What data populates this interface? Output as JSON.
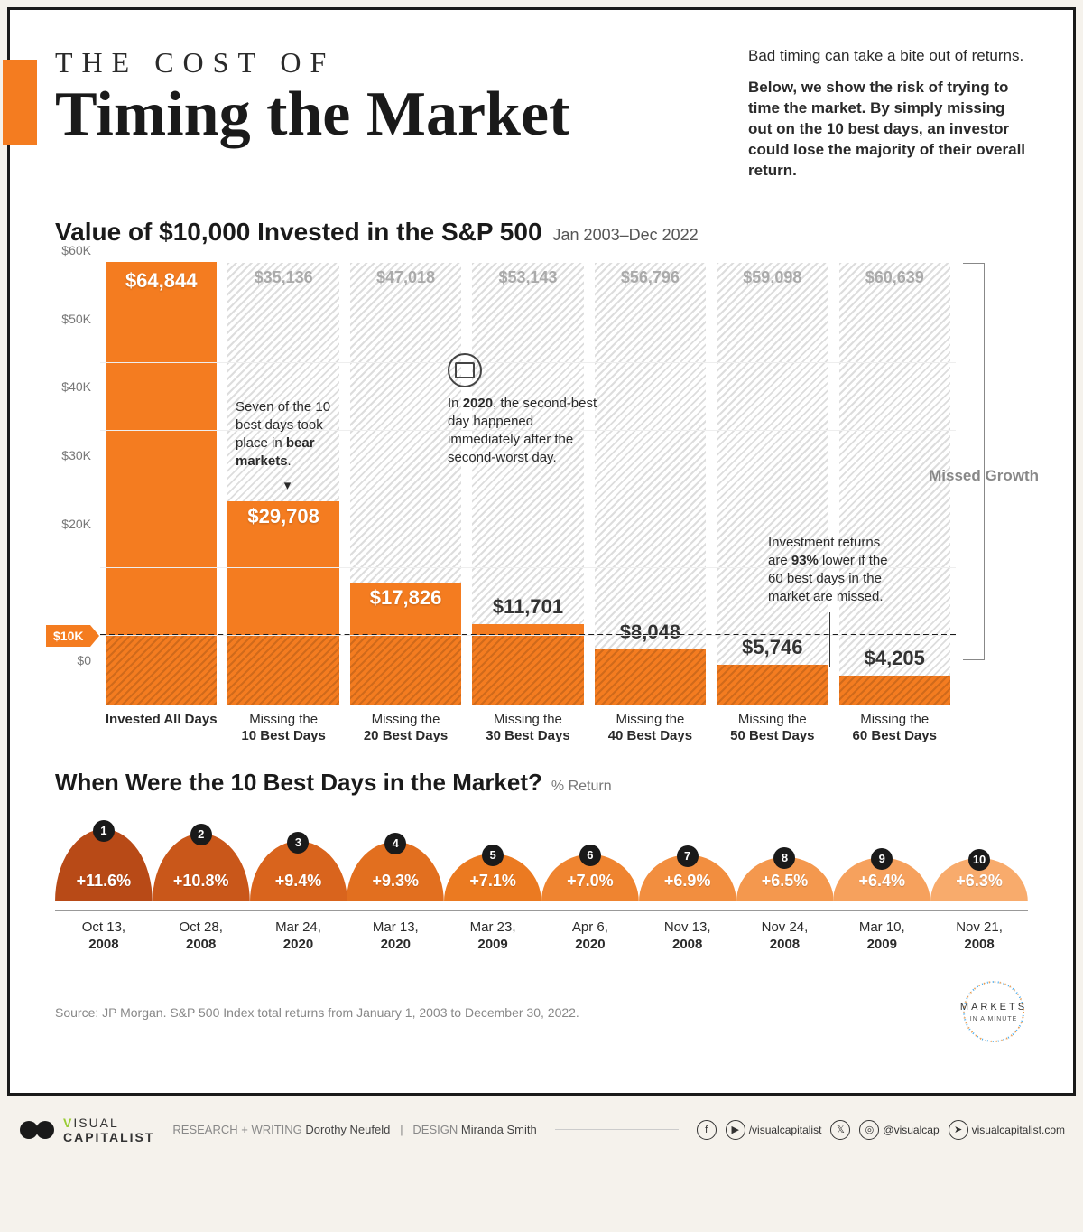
{
  "accent_color": "#f47c20",
  "text_color": "#1a1a1a",
  "muted_color": "#888888",
  "background_color": "#ffffff",
  "page_bg": "#f5f2ec",
  "header": {
    "pretitle": "THE COST OF",
    "title": "Timing the Market",
    "intro_lead": "Bad timing can take a bite out of returns.",
    "intro_body": "Below, we show the risk of trying to time the market. By simply missing out on the 10 best days, an investor could lose the majority of their overall return."
  },
  "chart": {
    "title": "Value of $10,000 Invested in the S&P 500",
    "date_range": "Jan 2003–Dec 2022",
    "ymax": 64844,
    "baseline": 10000,
    "baseline_label": "$10K",
    "yticks": [
      {
        "v": 0,
        "label": "$0"
      },
      {
        "v": 10000,
        "label": ""
      },
      {
        "v": 20000,
        "label": "$20K"
      },
      {
        "v": 30000,
        "label": "$30K"
      },
      {
        "v": 40000,
        "label": "$40K"
      },
      {
        "v": 50000,
        "label": "$50K"
      },
      {
        "v": 60000,
        "label": "$60K"
      }
    ],
    "bars": [
      {
        "xlabel1": "Invested All Days",
        "xlabel2": "",
        "value": 64844,
        "value_label": "$64,844",
        "missed": 0,
        "missed_label": "",
        "show_ghost": false
      },
      {
        "xlabel1": "Missing the",
        "xlabel2": "10 Best Days",
        "value": 29708,
        "value_label": "$29,708",
        "missed": 35136,
        "missed_label": "$35,136",
        "show_ghost": true
      },
      {
        "xlabel1": "Missing the",
        "xlabel2": "20 Best Days",
        "value": 17826,
        "value_label": "$17,826",
        "missed": 47018,
        "missed_label": "$47,018",
        "show_ghost": true
      },
      {
        "xlabel1": "Missing the",
        "xlabel2": "30 Best Days",
        "value": 11701,
        "value_label": "$11,701",
        "missed": 53143,
        "missed_label": "$53,143",
        "show_ghost": true
      },
      {
        "xlabel1": "Missing the",
        "xlabel2": "40 Best Days",
        "value": 8048,
        "value_label": "$8,048",
        "missed": 56796,
        "missed_label": "$56,796",
        "show_ghost": true
      },
      {
        "xlabel1": "Missing the",
        "xlabel2": "50 Best Days",
        "value": 5746,
        "value_label": "$5,746",
        "missed": 59098,
        "missed_label": "$59,098",
        "show_ghost": true
      },
      {
        "xlabel1": "Missing the",
        "xlabel2": "60 Best Days",
        "value": 4205,
        "value_label": "$4,205",
        "missed": 60639,
        "missed_label": "$60,639",
        "show_ghost": true
      }
    ],
    "missed_growth_label": "Missed Growth",
    "annotation1": {
      "text_pre": "Seven of the 10 best days took place in ",
      "text_bold": "bear markets",
      "text_post": "."
    },
    "annotation2": {
      "text_pre": "In ",
      "text_bold": "2020",
      "text_post": ", the second-best day happened immediately after the second-worst day."
    },
    "annotation3": {
      "text_pre": "Investment returns are ",
      "text_bold": "93%",
      "text_post": " lower if the 60 best days in the market are missed."
    }
  },
  "humps": {
    "title": "When Were the 10 Best Days in the Market?",
    "subtitle": "% Return",
    "max_pct": 11.6,
    "colors": [
      "#b84a17",
      "#c9571a",
      "#d9641d",
      "#e26f1f",
      "#eb7a21",
      "#ef8430",
      "#f28e3f",
      "#f4984e",
      "#f6a15d",
      "#f8ab6c"
    ],
    "items": [
      {
        "rank": "1",
        "pct": "+11.6%",
        "pct_v": 11.6,
        "date_line1": "Oct 13,",
        "date_year": "2008"
      },
      {
        "rank": "2",
        "pct": "+10.8%",
        "pct_v": 10.8,
        "date_line1": "Oct 28,",
        "date_year": "2008"
      },
      {
        "rank": "3",
        "pct": "+9.4%",
        "pct_v": 9.4,
        "date_line1": "Mar 24,",
        "date_year": "2020"
      },
      {
        "rank": "4",
        "pct": "+9.3%",
        "pct_v": 9.3,
        "date_line1": "Mar 13,",
        "date_year": "2020"
      },
      {
        "rank": "5",
        "pct": "+7.1%",
        "pct_v": 7.1,
        "date_line1": "Mar 23,",
        "date_year": "2009"
      },
      {
        "rank": "6",
        "pct": "+7.0%",
        "pct_v": 7.0,
        "date_line1": "Apr 6,",
        "date_year": "2020"
      },
      {
        "rank": "7",
        "pct": "+6.9%",
        "pct_v": 6.9,
        "date_line1": "Nov 13,",
        "date_year": "2008"
      },
      {
        "rank": "8",
        "pct": "+6.5%",
        "pct_v": 6.5,
        "date_line1": "Nov 24,",
        "date_year": "2008"
      },
      {
        "rank": "9",
        "pct": "+6.4%",
        "pct_v": 6.4,
        "date_line1": "Mar 10,",
        "date_year": "2009"
      },
      {
        "rank": "10",
        "pct": "+6.3%",
        "pct_v": 6.3,
        "date_line1": "Nov 21,",
        "date_year": "2008"
      }
    ]
  },
  "source": "Source: JP Morgan. S&P 500 Index total returns from January 1, 2003 to December 30, 2022.",
  "markets_logo": {
    "line1": "MARKETS",
    "line2": "IN A MINUTE"
  },
  "footer": {
    "brand1": "VISUAL",
    "brand2": "CAPITALIST",
    "credit_label1": "RESEARCH + WRITING",
    "credit_name1": "Dorothy Neufeld",
    "credit_label2": "DESIGN",
    "credit_name2": "Miranda Smith",
    "social_handle1": "/visualcapitalist",
    "social_handle2": "@visualcap",
    "social_handle3": "visualcapitalist.com"
  }
}
